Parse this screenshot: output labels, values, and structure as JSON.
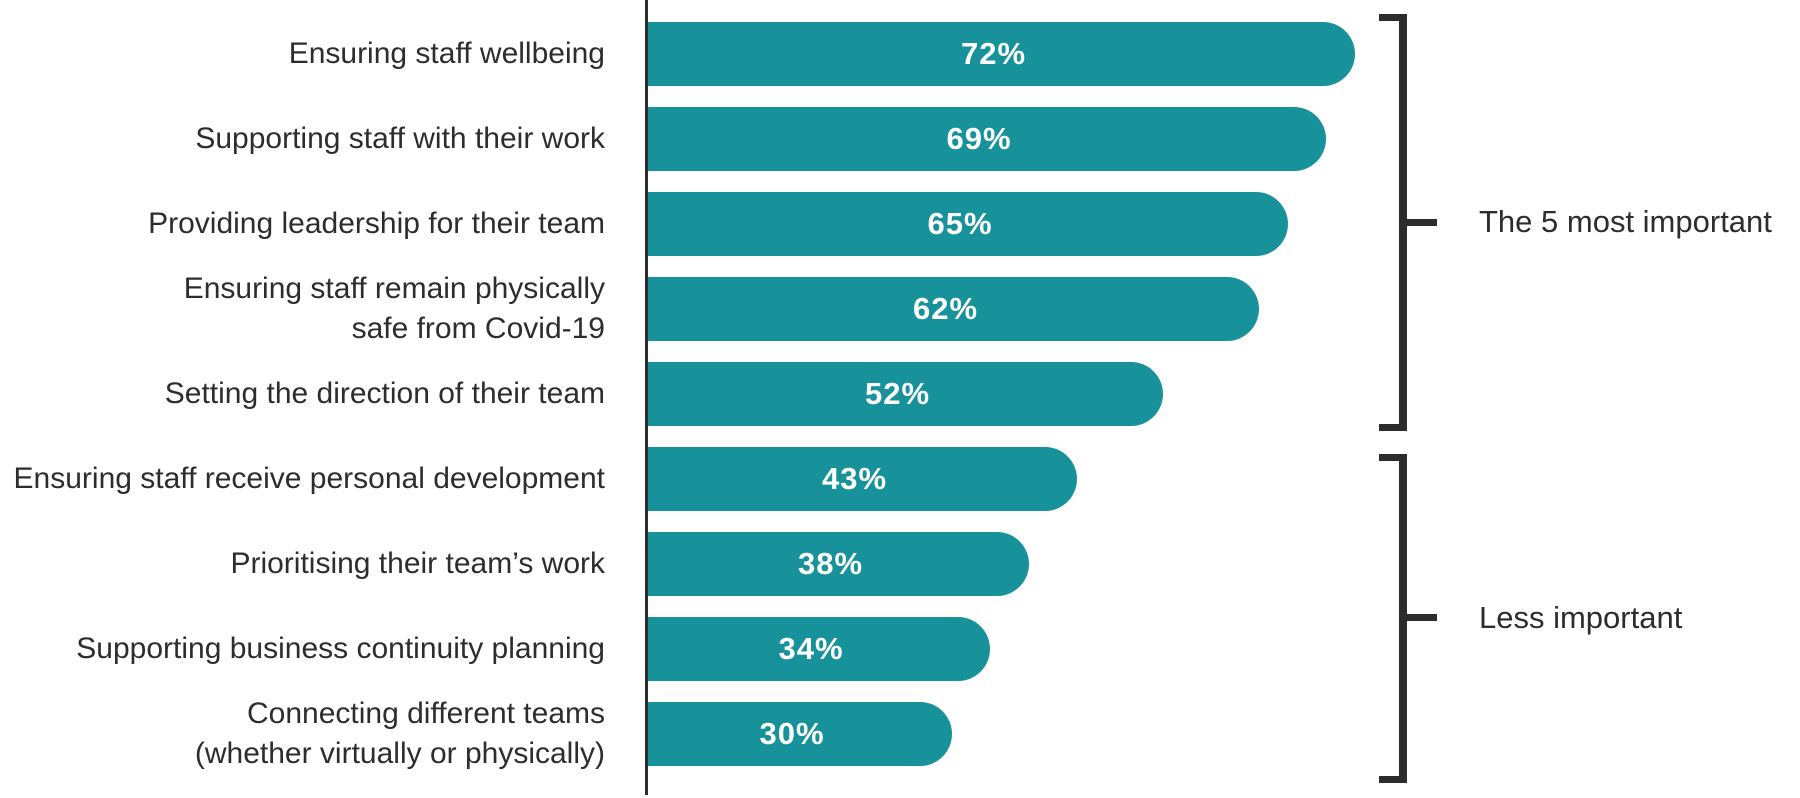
{
  "chart_data": {
    "type": "bar",
    "orientation": "horizontal",
    "unit": "%",
    "xlim": [
      0,
      100
    ],
    "grid": false,
    "legend": false,
    "categories": [
      "Ensuring staff wellbeing",
      "Supporting staff with their work",
      "Providing leadership for their team",
      "Ensuring staff remain physically\nsafe from Covid-19",
      "Setting the direction of their team",
      "Ensuring staff receive personal development",
      "Prioritising their team’s work",
      "Supporting business continuity planning",
      "Connecting different teams\n(whether virtually or physically)"
    ],
    "values": [
      72,
      69,
      65,
      62,
      52,
      43,
      38,
      34,
      30
    ],
    "value_labels": [
      "72%",
      "69%",
      "65%",
      "62%",
      "52%",
      "43%",
      "38%",
      "34%",
      "30%"
    ],
    "groups": [
      {
        "label": "The 5 most important",
        "bar_indices": [
          0,
          1,
          2,
          3,
          4
        ]
      },
      {
        "label": "Less important",
        "bar_indices": [
          5,
          6,
          7,
          8
        ]
      }
    ],
    "colors": {
      "bar": "#17929b",
      "value_text": "#ffffff",
      "category_text": "#2d2d2d",
      "axis": "#2c2c2e",
      "bracket": "#2c2c2e"
    }
  }
}
